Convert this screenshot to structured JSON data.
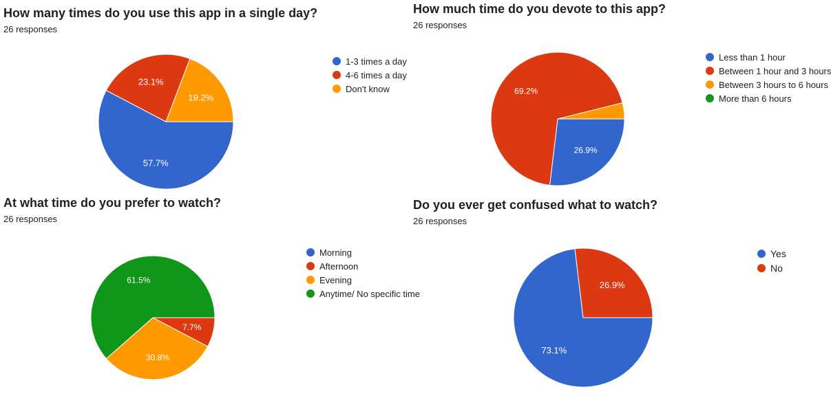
{
  "chart_data": [
    {
      "type": "pie",
      "title": "How many times do you use this app in a single day?",
      "subtitle": "26 responses",
      "categories": [
        "1-3 times a day",
        "4-6 times a day",
        "Don't know"
      ],
      "values": [
        57.7,
        23.1,
        19.2
      ],
      "labels": [
        "57.7%",
        "23.1%",
        "19.2%"
      ],
      "colors": [
        "#3366cc",
        "#dc3912",
        "#ff9900"
      ],
      "legend": "right"
    },
    {
      "type": "pie",
      "title": "How much time do you devote to this app?",
      "subtitle": "26 responses",
      "categories": [
        "Less than 1 hour",
        "Between 1 hour and 3 hours",
        "Between 3 hours to 6 hours",
        "More than 6 hours"
      ],
      "values": [
        26.9,
        69.2,
        3.9,
        0
      ],
      "labels": [
        "26.9%",
        "69.2%",
        "",
        ""
      ],
      "colors": [
        "#3366cc",
        "#dc3912",
        "#ff9900",
        "#109618"
      ],
      "legend": "right"
    },
    {
      "type": "pie",
      "title": "At what time do you prefer to watch?",
      "subtitle": "26 responses",
      "categories": [
        "Morning",
        "Afternoon",
        "Evening",
        "Anytime/ No specific time"
      ],
      "values": [
        0,
        7.7,
        30.8,
        61.5
      ],
      "labels": [
        "",
        "7.7%",
        "30.8%",
        "61.5%"
      ],
      "colors": [
        "#3366cc",
        "#dc3912",
        "#ff9900",
        "#109618"
      ],
      "legend": "right"
    },
    {
      "type": "pie",
      "title": "Do you ever get confused what to watch?",
      "subtitle": "26 responses",
      "categories": [
        "Yes",
        "No"
      ],
      "values": [
        73.1,
        26.9
      ],
      "labels": [
        "73.1%",
        "26.9%"
      ],
      "colors": [
        "#3366cc",
        "#dc3912"
      ],
      "legend": "right"
    }
  ]
}
